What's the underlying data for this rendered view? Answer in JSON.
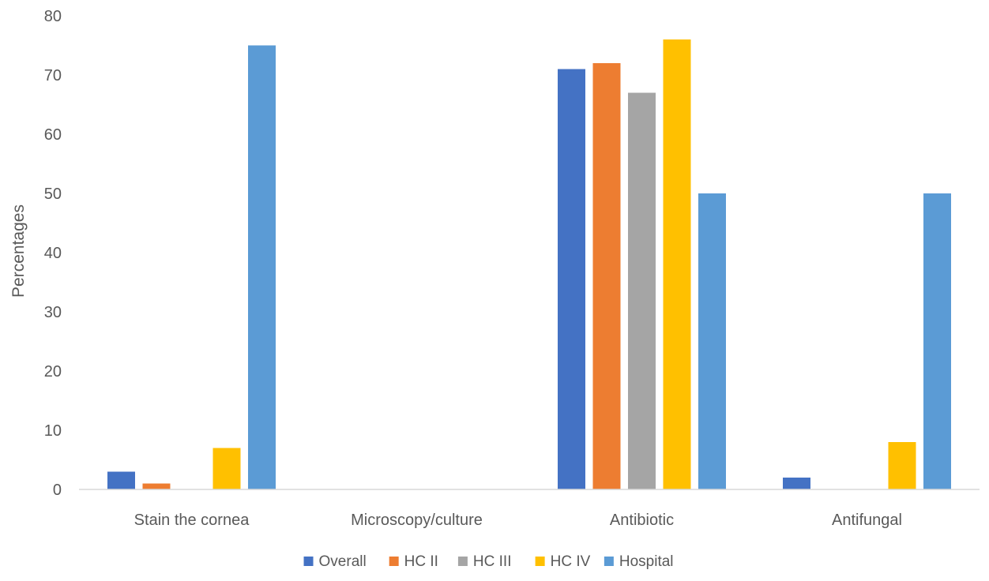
{
  "chart_data": {
    "type": "bar",
    "title": "",
    "xlabel": "",
    "ylabel": "Percentages",
    "ylim": [
      0,
      80
    ],
    "yticks": [
      0,
      10,
      20,
      30,
      40,
      50,
      60,
      70,
      80
    ],
    "grid": false,
    "legend_position": "bottom",
    "categories": [
      "Stain the cornea",
      "Microscopy/culture",
      "Antibiotic",
      "Antifungal"
    ],
    "series": [
      {
        "name": "Overall",
        "color": "#4472C4",
        "values": [
          3,
          0,
          71,
          2
        ]
      },
      {
        "name": "HC II",
        "color": "#ED7D31",
        "values": [
          1,
          0,
          72,
          0
        ]
      },
      {
        "name": "HC III",
        "color": "#A5A5A5",
        "values": [
          0,
          0,
          67,
          0
        ]
      },
      {
        "name": "HC IV",
        "color": "#FFC000",
        "values": [
          7,
          0,
          76,
          8
        ]
      },
      {
        "name": "Hospital",
        "color": "#5B9BD5",
        "values": [
          75,
          0,
          50,
          50
        ]
      }
    ]
  }
}
